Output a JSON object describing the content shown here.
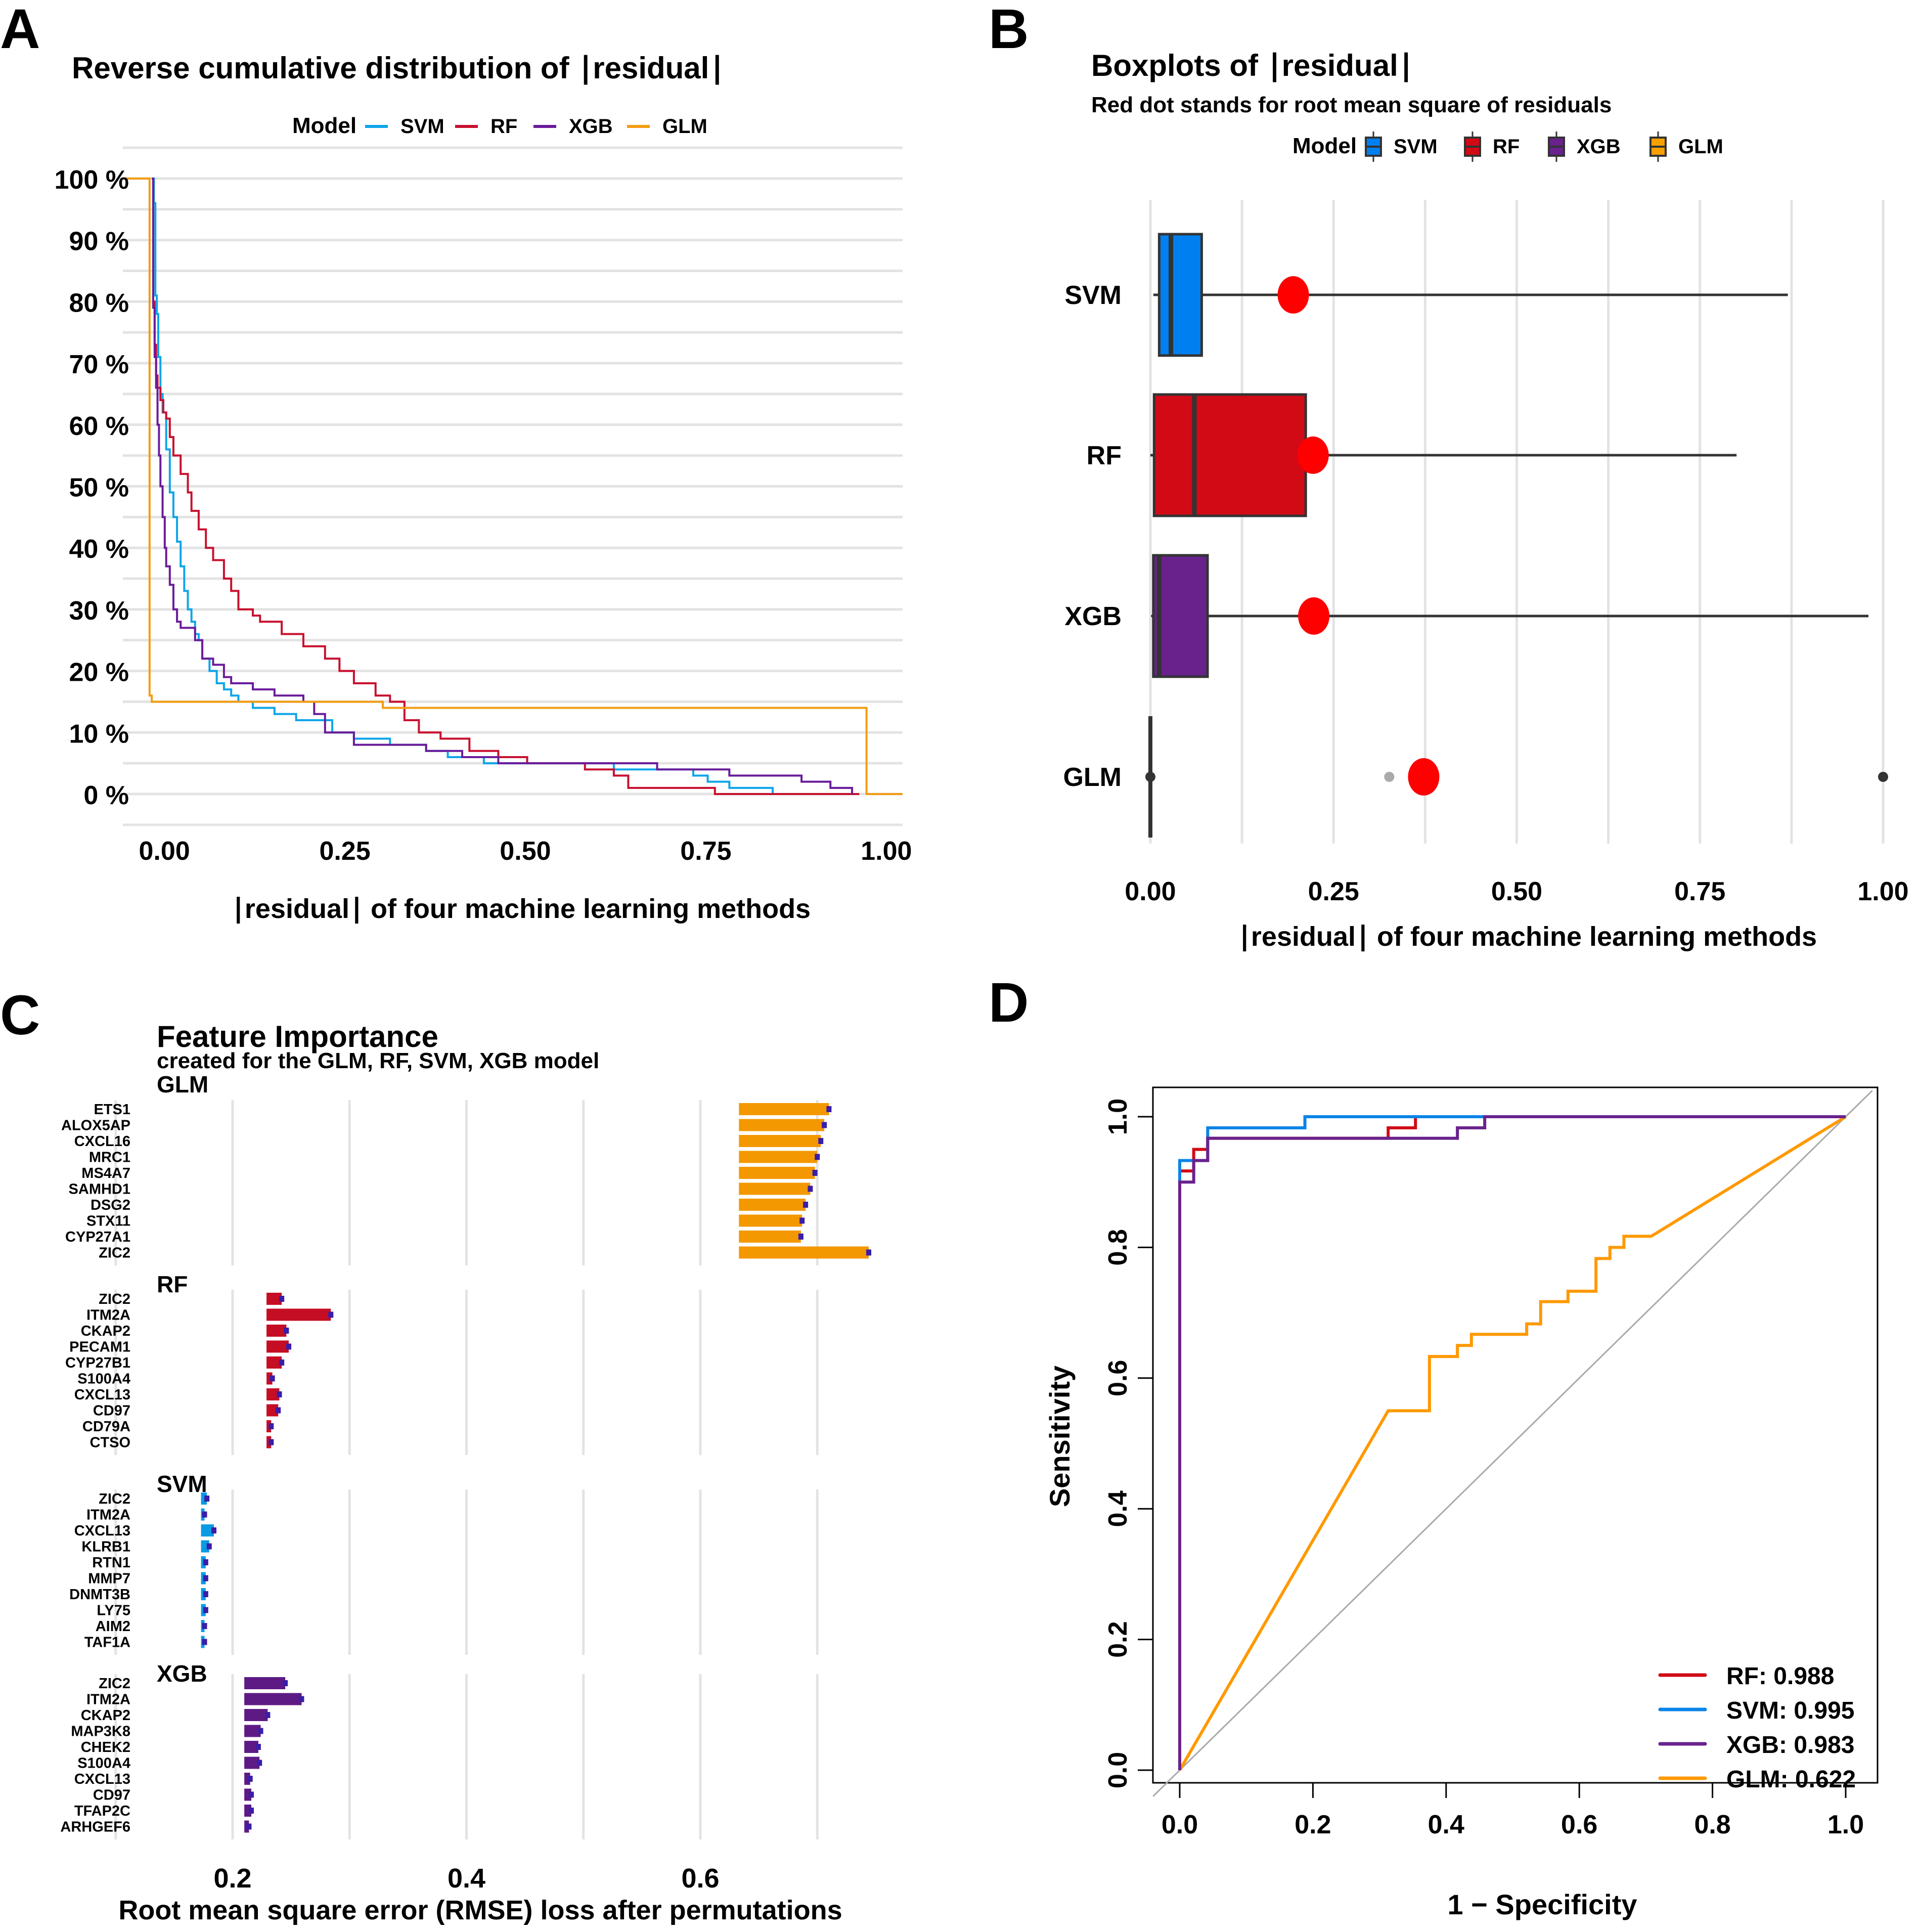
{
  "figure": {
    "panel_labels": [
      "A",
      "B",
      "C",
      "D"
    ]
  },
  "colors": {
    "SVM_line": "#0ea5e9",
    "RF_line": "#c8102e",
    "XGB_line": "#6a1b9a",
    "GLM_line": "#f39c12",
    "SVM_box": "#0080f0",
    "RF_box": "#d10a16",
    "XGB_box": "#69228c",
    "GLM_box": "#f7a100",
    "rmse_dot": "#ff0000",
    "grid": "#e3e3e3",
    "err_mark": "#3a1da8",
    "roc_RF": "#d10a16",
    "roc_SVM": "#0a84e8",
    "roc_XGB": "#69228c",
    "roc_GLM": "#ff9900",
    "diag": "#aaaaaa"
  },
  "chart_data": [
    {
      "panel": "A",
      "type": "line",
      "title": "Reverse cumulative distribution of ∣residual∣",
      "xlabel": "∣residual∣  of four machine learning methods",
      "ylabel": "",
      "legend_title": "Model",
      "legend_position": "top",
      "xlim": [
        -0.04,
        1.04
      ],
      "ylim": [
        -0.05,
        1.0
      ],
      "x_ticks": [
        0,
        0.25,
        0.5,
        0.75,
        1.0
      ],
      "x_tick_labels": [
        "0.00",
        "0.25",
        "0.50",
        "0.75",
        "1.00"
      ],
      "y_ticks": [
        0,
        0.1,
        0.2,
        0.3,
        0.4,
        0.5,
        0.6,
        0.7,
        0.8,
        0.9,
        1.0
      ],
      "y_tick_labels": [
        "0 %",
        "10 %",
        "20 %",
        "30 %",
        "40 %",
        "50 %",
        "60 %",
        "70 %",
        "80 %",
        "90 %",
        "100 %"
      ],
      "grid": true,
      "series": [
        {
          "name": "SVM",
          "x": [
            0,
            0.003,
            0.005,
            0.007,
            0.009,
            0.012,
            0.015,
            0.02,
            0.025,
            0.03,
            0.035,
            0.04,
            0.045,
            0.05,
            0.055,
            0.06,
            0.065,
            0.07,
            0.08,
            0.09,
            0.1,
            0.11,
            0.12,
            0.14,
            0.17,
            0.2,
            0.25,
            0.28,
            0.33,
            0.38,
            0.41,
            0.46,
            0.56,
            0.64,
            0.7,
            0.75,
            0.77,
            0.8,
            0.86
          ],
          "y": [
            1.0,
            0.96,
            0.81,
            0.78,
            0.71,
            0.65,
            0.62,
            0.56,
            0.49,
            0.45,
            0.41,
            0.37,
            0.33,
            0.3,
            0.28,
            0.26,
            0.25,
            0.22,
            0.2,
            0.18,
            0.17,
            0.16,
            0.15,
            0.14,
            0.13,
            0.12,
            0.1,
            0.09,
            0.08,
            0.07,
            0.06,
            0.05,
            0.05,
            0.04,
            0.04,
            0.03,
            0.02,
            0.01,
            0.0
          ]
        },
        {
          "name": "RF",
          "x": [
            0,
            0.002,
            0.004,
            0.006,
            0.008,
            0.012,
            0.016,
            0.02,
            0.025,
            0.03,
            0.04,
            0.05,
            0.055,
            0.065,
            0.075,
            0.085,
            0.1,
            0.11,
            0.12,
            0.14,
            0.15,
            0.18,
            0.21,
            0.24,
            0.26,
            0.28,
            0.31,
            0.33,
            0.35,
            0.37,
            0.4,
            0.44,
            0.48,
            0.52,
            0.56,
            0.6,
            0.64,
            0.66,
            0.78,
            0.98
          ],
          "y": [
            1.0,
            0.8,
            0.73,
            0.68,
            0.66,
            0.64,
            0.62,
            0.61,
            0.58,
            0.55,
            0.52,
            0.49,
            0.46,
            0.43,
            0.4,
            0.38,
            0.35,
            0.33,
            0.3,
            0.29,
            0.28,
            0.26,
            0.24,
            0.22,
            0.2,
            0.18,
            0.16,
            0.15,
            0.12,
            0.1,
            0.09,
            0.07,
            0.06,
            0.05,
            0.05,
            0.04,
            0.03,
            0.01,
            0.0,
            0.0
          ]
        },
        {
          "name": "XGB",
          "x": [
            0,
            0.002,
            0.004,
            0.006,
            0.008,
            0.01,
            0.012,
            0.015,
            0.018,
            0.02,
            0.025,
            0.03,
            0.035,
            0.04,
            0.045,
            0.05,
            0.06,
            0.07,
            0.085,
            0.1,
            0.11,
            0.14,
            0.17,
            0.21,
            0.225,
            0.24,
            0.28,
            0.35,
            0.38,
            0.43,
            0.48,
            0.56,
            0.7,
            0.8,
            0.9,
            0.94,
            0.97
          ],
          "y": [
            1.0,
            0.79,
            0.71,
            0.66,
            0.6,
            0.55,
            0.5,
            0.45,
            0.4,
            0.37,
            0.34,
            0.3,
            0.28,
            0.27,
            0.27,
            0.27,
            0.25,
            0.22,
            0.21,
            0.19,
            0.18,
            0.17,
            0.16,
            0.15,
            0.13,
            0.1,
            0.08,
            0.08,
            0.07,
            0.06,
            0.05,
            0.05,
            0.04,
            0.03,
            0.02,
            0.01,
            0.0
          ]
        },
        {
          "name": "GLM",
          "x": [
            -0.04,
            -0.005,
            -0.003,
            0.0,
            0.31,
            0.32,
            0.985,
            0.99,
            1.04
          ],
          "y": [
            1.0,
            1.0,
            0.16,
            0.15,
            0.15,
            0.14,
            0.14,
            0.0,
            0.0
          ]
        }
      ]
    },
    {
      "panel": "B",
      "type": "box",
      "title": "Boxplots of  ∣residual∣",
      "subtitle": "Red dot stands for root mean square of residuals",
      "xlabel": "∣residual∣  of four machine learning methods",
      "legend_title": "Model",
      "legend_position": "top",
      "xlim": [
        -0.005,
        1.005
      ],
      "x_ticks": [
        0,
        0.25,
        0.5,
        0.75,
        1.0
      ],
      "x_tick_labels": [
        "0.00",
        "0.25",
        "0.50",
        "0.75",
        "1.00"
      ],
      "grid": true,
      "categories": [
        "SVM",
        "RF",
        "XGB",
        "GLM"
      ],
      "boxes": [
        {
          "name": "SVM",
          "whisker_low": 0.004,
          "q1": 0.012,
          "median": 0.028,
          "q3": 0.07,
          "whisker_high": 0.87,
          "rmse": 0.195
        },
        {
          "name": "RF",
          "whisker_low": 0.0,
          "q1": 0.005,
          "median": 0.06,
          "q3": 0.212,
          "whisker_high": 0.8,
          "rmse": 0.222
        },
        {
          "name": "XGB",
          "whisker_low": 0.001,
          "q1": 0.004,
          "median": 0.012,
          "q3": 0.078,
          "whisker_high": 0.98,
          "rmse": 0.223
        },
        {
          "name": "GLM",
          "whisker_low": 0.0,
          "q1": 0.0,
          "median": 0.0,
          "q3": 0.0,
          "whisker_high": 0.0,
          "rmse": 0.373,
          "outliers": [
            0.0,
            0.326,
            1.0
          ]
        }
      ]
    },
    {
      "panel": "C",
      "type": "bar",
      "title": "Feature Importance",
      "subtitle": "created for the GLM, RF, SVM, XGB model",
      "xlabel": "Root mean square error (RMSE) loss after permutations",
      "xlim": [
        0.06,
        0.8
      ],
      "x_ticks": [
        0.2,
        0.4,
        0.6
      ],
      "x_tick_labels": [
        "0.2",
        "0.4",
        "0.6"
      ],
      "grid_x": [
        0.1,
        0.2,
        0.3,
        0.4,
        0.5,
        0.6,
        0.7
      ],
      "facets": [
        {
          "model": "GLM",
          "baseline": 0.633,
          "features": [
            "ETS1",
            "ALOX5AP",
            "CXCL16",
            "MRC1",
            "MS4A7",
            "SAMHD1",
            "DSG2",
            "STX11",
            "CYP27A1",
            "ZIC2"
          ],
          "values": [
            0.71,
            0.706,
            0.703,
            0.7,
            0.698,
            0.694,
            0.69,
            0.687,
            0.686,
            0.744
          ]
        },
        {
          "model": "RF",
          "baseline": 0.229,
          "features": [
            "ZIC2",
            "ITM2A",
            "CKAP2",
            "PECAM1",
            "CYP27B1",
            "S100A4",
            "CXCL13",
            "CD97",
            "CD79A",
            "CTSO"
          ],
          "values": [
            0.242,
            0.284,
            0.246,
            0.248,
            0.242,
            0.234,
            0.24,
            0.239,
            0.233,
            0.233
          ]
        },
        {
          "model": "SVM",
          "baseline": 0.173,
          "features": [
            "ZIC2",
            "ITM2A",
            "CXCL13",
            "KLRB1",
            "RTN1",
            "MMP7",
            "DNMT3B",
            "LY75",
            "AIM2",
            "TAF1A"
          ],
          "values": [
            0.178,
            0.176,
            0.184,
            0.18,
            0.177,
            0.177,
            0.177,
            0.177,
            0.176,
            0.176
          ]
        },
        {
          "model": "XGB",
          "baseline": 0.21,
          "features": [
            "ZIC2",
            "ITM2A",
            "CKAP2",
            "MAP3K8",
            "CHEK2",
            "S100A4",
            "CXCL13",
            "CD97",
            "TFAP2C",
            "ARHGEF6"
          ],
          "values": [
            0.245,
            0.259,
            0.23,
            0.224,
            0.222,
            0.223,
            0.215,
            0.216,
            0.216,
            0.214
          ]
        }
      ]
    },
    {
      "panel": "D",
      "type": "line",
      "subtype": "roc",
      "xlabel": "1 − Specificity",
      "ylabel": "Sensitivity",
      "xlim": [
        -0.04,
        1.04
      ],
      "ylim": [
        -0.04,
        1.04
      ],
      "x_ticks": [
        0,
        0.2,
        0.4,
        0.6,
        0.8,
        1.0
      ],
      "x_tick_labels": [
        "0.0",
        "0.2",
        "0.4",
        "0.6",
        "0.8",
        "1.0"
      ],
      "y_ticks": [
        0,
        0.2,
        0.4,
        0.6,
        0.8,
        1.0
      ],
      "y_tick_labels": [
        "0.0",
        "0.2",
        "0.4",
        "0.6",
        "0.8",
        "1.0"
      ],
      "legend_position": "bottom-right",
      "series": [
        {
          "name": "RF",
          "auc": 0.988,
          "label": "RF: 0.988",
          "x": [
            0,
            0,
            0.021,
            0.021,
            0.042,
            0.042,
            0.313,
            0.313,
            0.354,
            0.354,
            1.0
          ],
          "y": [
            0,
            0.917,
            0.917,
            0.95,
            0.95,
            0.967,
            0.967,
            0.983,
            0.983,
            1.0,
            1.0
          ]
        },
        {
          "name": "SVM",
          "auc": 0.995,
          "label": "SVM: 0.995",
          "x": [
            0,
            0,
            0.042,
            0.042,
            0.188,
            0.188,
            1.0
          ],
          "y": [
            0,
            0.933,
            0.933,
            0.983,
            0.983,
            1.0,
            1.0
          ]
        },
        {
          "name": "XGB",
          "auc": 0.983,
          "label": "XGB: 0.983",
          "x": [
            0,
            0,
            0.021,
            0.021,
            0.042,
            0.042,
            0.417,
            0.417,
            0.458,
            0.458,
            1.0
          ],
          "y": [
            0,
            0.9,
            0.9,
            0.933,
            0.933,
            0.967,
            0.967,
            0.983,
            0.983,
            1.0,
            1.0
          ]
        },
        {
          "name": "GLM",
          "auc": 0.622,
          "label": "GLM: 0.622",
          "x": [
            0,
            0.313,
            0.375,
            0.375,
            0.417,
            0.417,
            0.438,
            0.438,
            0.521,
            0.521,
            0.542,
            0.542,
            0.583,
            0.583,
            0.625,
            0.625,
            0.646,
            0.646,
            0.667,
            0.667,
            0.708,
            1.0
          ],
          "y": [
            0,
            0.55,
            0.55,
            0.633,
            0.633,
            0.65,
            0.65,
            0.667,
            0.667,
            0.683,
            0.683,
            0.717,
            0.717,
            0.733,
            0.733,
            0.783,
            0.783,
            0.8,
            0.8,
            0.817,
            0.817,
            1.0
          ]
        }
      ]
    }
  ]
}
